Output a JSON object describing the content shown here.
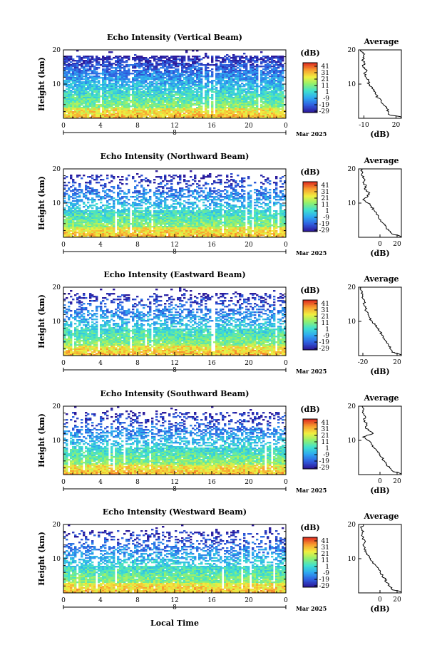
{
  "figure": {
    "x_axis_label": "Local Time",
    "month_label": "Mar 2025",
    "day_label": "8"
  },
  "colorbar": {
    "unit_label": "(dB)",
    "ticks": [
      "41",
      "31",
      "21",
      "11",
      "1",
      "-9",
      "-19",
      "-29"
    ],
    "range": [
      -29,
      41
    ],
    "colors": [
      "#2c1a9a",
      "#2f5fe0",
      "#2fa8f0",
      "#3fe0d0",
      "#8ff070",
      "#f0f040",
      "#f8a030",
      "#e03020"
    ]
  },
  "chart_data": [
    {
      "type": "heatmap",
      "title": "Echo Intensity (Vertical Beam)",
      "ylabel": "Height (km)",
      "ylim": [
        0,
        20
      ],
      "yticks": [
        "20",
        "10"
      ],
      "xlim": [
        0,
        24
      ],
      "xticks": [
        "0",
        "4",
        "8",
        "12",
        "16",
        "20",
        "0"
      ],
      "average": {
        "title": "Average",
        "xlabel": "(dB)",
        "xticks": [
          "-10",
          "20"
        ],
        "xlim": [
          -15,
          25
        ],
        "yticks": [
          "20",
          "10"
        ],
        "profile": [
          [
            24,
            0.5
          ],
          [
            14,
            1
          ],
          [
            13,
            2
          ],
          [
            11,
            3
          ],
          [
            8,
            4
          ],
          [
            6,
            5
          ],
          [
            3,
            6
          ],
          [
            1,
            7
          ],
          [
            -1,
            8
          ],
          [
            -2,
            9
          ],
          [
            -5,
            10
          ],
          [
            -6,
            11
          ],
          [
            -8,
            12
          ],
          [
            -10,
            13
          ],
          [
            -7,
            14
          ],
          [
            -11,
            15
          ],
          [
            -9,
            16
          ],
          [
            -12,
            17
          ],
          [
            -10,
            18
          ],
          [
            -11,
            19
          ],
          [
            -13,
            20
          ]
        ]
      }
    },
    {
      "type": "heatmap",
      "title": "Echo Intensity (Northward Beam)",
      "ylabel": "Height (km)",
      "ylim": [
        0,
        20
      ],
      "yticks": [
        "20",
        "10"
      ],
      "xlim": [
        0,
        24
      ],
      "xticks": [
        "0",
        "4",
        "8",
        "12",
        "16",
        "20",
        "0"
      ],
      "average": {
        "title": "Average",
        "xlabel": "(dB)",
        "xticks": [
          "0",
          "20"
        ],
        "xlim": [
          -25,
          25
        ],
        "yticks": [
          "20",
          "10"
        ],
        "profile": [
          [
            22,
            0.5
          ],
          [
            14,
            1
          ],
          [
            10,
            2
          ],
          [
            7,
            3
          ],
          [
            4,
            4
          ],
          [
            1,
            5
          ],
          [
            -2,
            6
          ],
          [
            -4,
            7
          ],
          [
            -7,
            8
          ],
          [
            -10,
            9
          ],
          [
            -14,
            10
          ],
          [
            -20,
            11
          ],
          [
            -14,
            12
          ],
          [
            -12,
            13
          ],
          [
            -18,
            14
          ],
          [
            -16,
            15
          ],
          [
            -20,
            16
          ],
          [
            -18,
            17
          ],
          [
            -21,
            18
          ],
          [
            -20,
            19
          ],
          [
            -22,
            20
          ]
        ]
      }
    },
    {
      "type": "heatmap",
      "title": "Echo Intensity (Eastward Beam)",
      "ylabel": "Height (km)",
      "ylim": [
        0,
        20
      ],
      "yticks": [
        "20",
        "10"
      ],
      "xlim": [
        0,
        24
      ],
      "xticks": [
        "0",
        "4",
        "8",
        "12",
        "16",
        "20",
        "0"
      ],
      "average": {
        "title": "Average",
        "xlabel": "(dB)",
        "xticks": [
          "-20",
          "20"
        ],
        "xlim": [
          -25,
          25
        ],
        "yticks": [
          "20",
          "10"
        ],
        "profile": [
          [
            22,
            0.5
          ],
          [
            14,
            1
          ],
          [
            12,
            2
          ],
          [
            10,
            3
          ],
          [
            8,
            4
          ],
          [
            5,
            5
          ],
          [
            2,
            6
          ],
          [
            0,
            7
          ],
          [
            -3,
            8
          ],
          [
            -6,
            9
          ],
          [
            -9,
            10
          ],
          [
            -12,
            11
          ],
          [
            -14,
            12
          ],
          [
            -16,
            13
          ],
          [
            -17,
            14
          ],
          [
            -19,
            15
          ],
          [
            -18,
            16
          ],
          [
            -21,
            17
          ],
          [
            -20,
            18
          ],
          [
            -22,
            19
          ],
          [
            -23,
            20
          ]
        ]
      }
    },
    {
      "type": "heatmap",
      "title": "Echo Intensity (Southward Beam)",
      "ylabel": "Height (km)",
      "ylim": [
        0,
        20
      ],
      "yticks": [
        "20",
        "10"
      ],
      "xlim": [
        0,
        24
      ],
      "xticks": [
        "0",
        "4",
        "8",
        "12",
        "16",
        "20",
        "0"
      ],
      "average": {
        "title": "Average",
        "xlabel": "(dB)",
        "xticks": [
          "0",
          "20"
        ],
        "xlim": [
          -25,
          25
        ],
        "yticks": [
          "20",
          "10"
        ],
        "profile": [
          [
            22,
            0.5
          ],
          [
            15,
            1
          ],
          [
            11,
            2
          ],
          [
            8,
            3
          ],
          [
            5,
            4
          ],
          [
            2,
            5
          ],
          [
            -1,
            6
          ],
          [
            -4,
            7
          ],
          [
            -7,
            8
          ],
          [
            -10,
            9
          ],
          [
            -14,
            10
          ],
          [
            -20,
            11
          ],
          [
            -8,
            12
          ],
          [
            -14,
            13
          ],
          [
            -17,
            14
          ],
          [
            -15,
            15
          ],
          [
            -19,
            16
          ],
          [
            -17,
            17
          ],
          [
            -20,
            18
          ],
          [
            -19,
            19
          ],
          [
            -21,
            20
          ]
        ]
      }
    },
    {
      "type": "heatmap",
      "title": "Echo Intensity (Westward Beam)",
      "ylabel": "Height (km)",
      "ylim": [
        0,
        20
      ],
      "yticks": [
        "20",
        "10"
      ],
      "xlim": [
        0,
        24
      ],
      "xticks": [
        "0",
        "4",
        "8",
        "12",
        "16",
        "20",
        "0"
      ],
      "average": {
        "title": "Average",
        "xlabel": "(dB)",
        "xticks": [
          "0",
          "20"
        ],
        "xlim": [
          -25,
          25
        ],
        "yticks": [
          "20",
          "10"
        ],
        "profile": [
          [
            22,
            0.5
          ],
          [
            14,
            1
          ],
          [
            11,
            2
          ],
          [
            8,
            3
          ],
          [
            6,
            4
          ],
          [
            3,
            5
          ],
          [
            0,
            6
          ],
          [
            -2,
            7
          ],
          [
            -5,
            8
          ],
          [
            -8,
            9
          ],
          [
            -11,
            10
          ],
          [
            -14,
            11
          ],
          [
            -16,
            12
          ],
          [
            -18,
            13
          ],
          [
            -20,
            14
          ],
          [
            -17,
            15
          ],
          [
            -20,
            16
          ],
          [
            -21,
            17
          ],
          [
            -19,
            18
          ],
          [
            -22,
            19
          ],
          [
            -20,
            20
          ]
        ]
      }
    }
  ]
}
